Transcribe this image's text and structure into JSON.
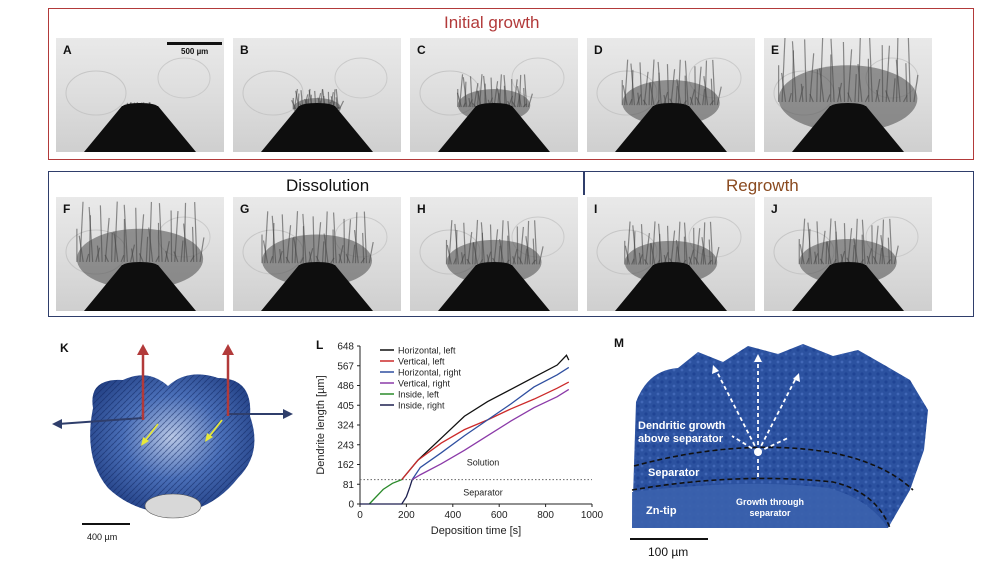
{
  "sections": {
    "initial_growth": "Initial growth",
    "dissolution": "Dissolution",
    "regrowth": "Regrowth"
  },
  "panels": {
    "a": {
      "label": "A",
      "dendrite": 0.04
    },
    "b": {
      "label": "B",
      "dendrite": 0.22
    },
    "c": {
      "label": "C",
      "dendrite": 0.42
    },
    "d": {
      "label": "D",
      "dendrite": 0.62
    },
    "e": {
      "label": "E",
      "dendrite": 0.95
    },
    "f": {
      "label": "F",
      "dendrite": 0.85
    },
    "g": {
      "label": "G",
      "dendrite": 0.72
    },
    "h": {
      "label": "H",
      "dendrite": 0.6
    },
    "i": {
      "label": "I",
      "dendrite": 0.58
    },
    "j": {
      "label": "J",
      "dendrite": 0.62
    }
  },
  "scalebar_top": "500 µm",
  "panel_k": {
    "label": "K",
    "scale": "400 µm"
  },
  "panel_l": {
    "label": "L"
  },
  "panel_m": {
    "label": "M",
    "scale": "100 µm",
    "annotations": {
      "growth_above": "Dendritic growth above separator",
      "separator": "Separator",
      "growth_through": "Growth through separator",
      "zn_tip": "Zn-tip"
    }
  },
  "colors": {
    "red": "#b23a3a",
    "navy": "#2f3e6b",
    "regrowth": "#8a4a1f",
    "dendrite_blue": "#2c52a0"
  },
  "chart_data": {
    "type": "line",
    "xlabel": "Deposition time [s]",
    "ylabel": "Dendrite length [µm]",
    "xlim": [
      0,
      1000
    ],
    "ylim": [
      0,
      648
    ],
    "xticks": [
      0,
      200,
      400,
      600,
      800,
      1000
    ],
    "yticks": [
      0,
      81,
      162,
      243,
      324,
      405,
      486,
      567,
      648
    ],
    "threshold": 100,
    "region_labels": {
      "upper": "Solution",
      "lower": "Separator"
    },
    "legend_position": "top-left",
    "series": [
      {
        "name": "Horizontal,   left",
        "color": "#111111",
        "x": [
          180,
          250,
          350,
          450,
          550,
          650,
          750,
          850,
          890,
          900
        ],
        "y": [
          100,
          180,
          270,
          360,
          420,
          470,
          520,
          570,
          610,
          590
        ]
      },
      {
        "name": "Vertical,     left",
        "color": "#cc2a2a",
        "x": [
          180,
          250,
          350,
          450,
          550,
          650,
          750,
          850,
          900
        ],
        "y": [
          100,
          180,
          250,
          305,
          345,
          390,
          430,
          475,
          500
        ]
      },
      {
        "name": "Horizontal, right",
        "color": "#2f4fa0",
        "x": [
          225,
          260,
          350,
          450,
          550,
          650,
          750,
          850,
          900
        ],
        "y": [
          100,
          150,
          210,
          280,
          345,
          410,
          480,
          530,
          560
        ]
      },
      {
        "name": "Vertical,    right",
        "color": "#8b3aa8",
        "x": [
          225,
          260,
          350,
          450,
          550,
          650,
          750,
          850,
          900
        ],
        "y": [
          100,
          120,
          165,
          220,
          280,
          340,
          395,
          440,
          470
        ]
      },
      {
        "name": "Inside,         left",
        "color": "#2a8a2a",
        "x": [
          40,
          60,
          100,
          140,
          180
        ],
        "y": [
          0,
          20,
          60,
          85,
          100
        ]
      },
      {
        "name": "Inside,         right",
        "color": "#1c1f4f",
        "x": [
          0,
          180,
          200,
          215,
          225
        ],
        "y": [
          0,
          0,
          30,
          70,
          100
        ]
      }
    ]
  }
}
